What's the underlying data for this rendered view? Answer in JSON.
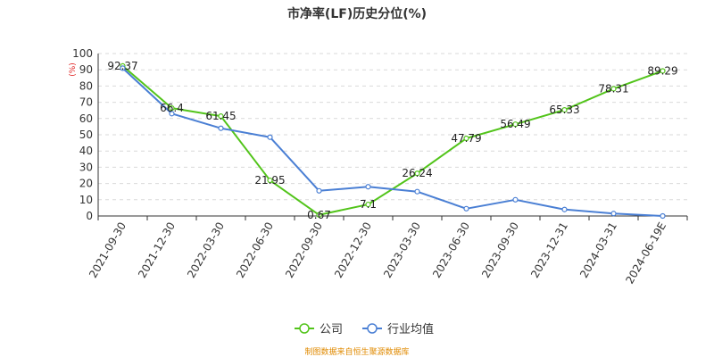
{
  "chart_data": {
    "type": "line",
    "title": "市净率(LF)历史分位(%)",
    "unit": "(%)",
    "ylim": [
      0,
      100
    ],
    "yticks": [
      0,
      10,
      20,
      30,
      40,
      50,
      60,
      70,
      80,
      90,
      100
    ],
    "categories": [
      "2021-09-30",
      "2021-12-30",
      "2022-03-30",
      "2022-06-30",
      "2022-09-30",
      "2022-12-30",
      "2023-03-30",
      "2023-06-30",
      "2023-09-30",
      "2023-12-31",
      "2024-03-31",
      "2024-06-19E"
    ],
    "grid": true,
    "legend_position": "bottom",
    "series": [
      {
        "name": "公司",
        "color": "#52c41a",
        "values": [
          92.37,
          66.4,
          61.45,
          21.95,
          0.67,
          7.1,
          26.24,
          47.79,
          56.49,
          65.33,
          78.31,
          89.29
        ],
        "labels": [
          "92.37",
          "66.4",
          "61.45",
          "21.95",
          "0.67",
          "7.1",
          "26.24",
          "47.79",
          "56.49",
          "65.33",
          "78.31",
          "89.29"
        ]
      },
      {
        "name": "行业均值",
        "color": "#4a7fd4",
        "values": [
          91.0,
          63.0,
          54.0,
          48.5,
          15.5,
          18.0,
          15.0,
          4.5,
          10.0,
          4.0,
          1.5,
          0.0
        ]
      }
    ]
  },
  "source_text": "制图数据来自恒生聚源数据库"
}
